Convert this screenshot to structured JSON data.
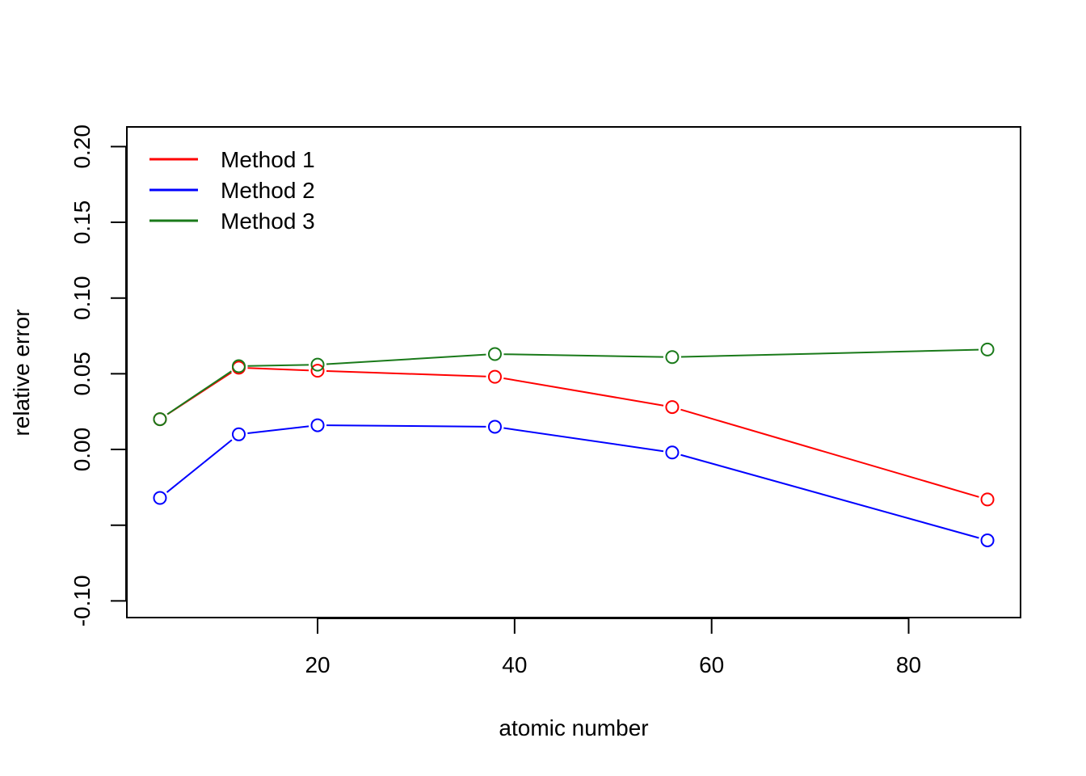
{
  "chart_data": {
    "type": "line",
    "title": "",
    "xlabel": "atomic number",
    "ylabel": "relative error",
    "xlim": [
      0.64,
      91.36
    ],
    "ylim": [
      -0.111,
      0.213
    ],
    "x_ticks": [
      20,
      40,
      60,
      80
    ],
    "x_tick_labels": [
      "20",
      "40",
      "60",
      "80"
    ],
    "y_ticks": [
      -0.1,
      -0.05,
      0.0,
      0.05,
      0.1,
      0.15,
      0.2
    ],
    "y_tick_labels": [
      "-0.10",
      "",
      "0.00",
      "0.05",
      "0.10",
      "0.15",
      "0.20"
    ],
    "grid": false,
    "legend": {
      "position": "top-left"
    },
    "markers": "open-circle",
    "x": [
      4,
      12,
      20,
      38,
      56,
      88
    ],
    "series": [
      {
        "name": "Method 1",
        "color": "#ff0000",
        "values": [
          0.02,
          0.054,
          0.052,
          0.048,
          0.028,
          -0.033
        ]
      },
      {
        "name": "Method 2",
        "color": "#0000ff",
        "values": [
          -0.032,
          0.01,
          0.016,
          0.015,
          -0.002,
          -0.06
        ]
      },
      {
        "name": "Method 3",
        "color": "#1a7a1a",
        "values": [
          0.02,
          0.055,
          0.056,
          0.063,
          0.061,
          0.066
        ]
      }
    ]
  }
}
